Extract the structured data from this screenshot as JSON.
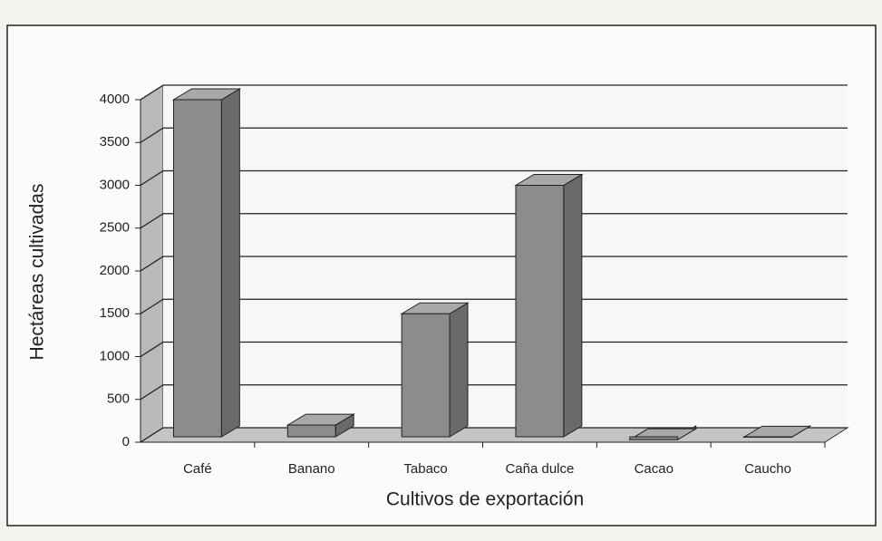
{
  "chart_data": {
    "type": "bar3d",
    "categories": [
      "Café",
      "Banano",
      "Tabaco",
      "Caña dulce",
      "Cacao",
      "Caucho"
    ],
    "values": [
      4000,
      200,
      1500,
      3000,
      30,
      60
    ],
    "color": "#8c8c8c",
    "ylim": [
      0,
      4000
    ],
    "yticks": [
      0,
      500,
      1000,
      1500,
      2000,
      2500,
      3000,
      3500,
      4000
    ],
    "grid": true,
    "y_label": "Hectáreas cultivadas",
    "x_label": "Cultivos de exportación"
  }
}
